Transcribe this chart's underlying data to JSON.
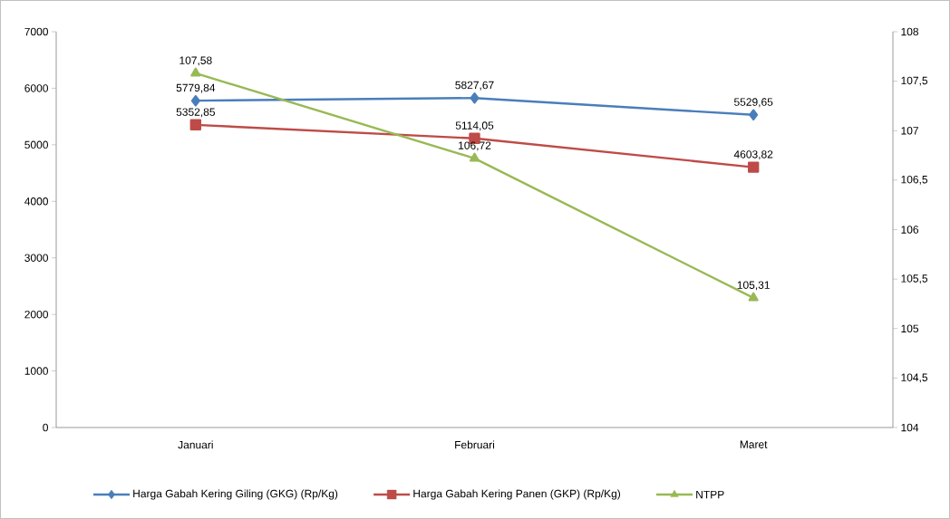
{
  "chart_data": {
    "type": "line",
    "categories": [
      "Januari",
      "Februari",
      "Maret"
    ],
    "series": [
      {
        "name": "Harga Gabah Kering Giling (GKG) (Rp/Kg)",
        "color": "#4a7ebb",
        "marker": "diamond",
        "values": [
          5779.84,
          5827.67,
          5529.65
        ],
        "value_labels": [
          "5779,84",
          "5827,67",
          "5529,65"
        ]
      },
      {
        "name": "Harga Gabah Kering Panen (GKP) (Rp/Kg)",
        "color": "#be4b48",
        "marker": "square",
        "values": [
          5352.85,
          5114.05,
          4603.82
        ],
        "value_labels": [
          "5352,85",
          "5114,05",
          "4603,82"
        ]
      },
      {
        "name": "NTPP",
        "color": "#98b954",
        "marker": "triangle",
        "axis": "y2",
        "values": [
          107.58,
          106.72,
          105.31
        ],
        "value_labels": [
          "107,58",
          "106,72",
          "105,31"
        ]
      }
    ],
    "ylim": [
      0,
      7000
    ],
    "yticks": [
      0,
      1000,
      2000,
      3000,
      4000,
      5000,
      6000,
      7000
    ],
    "y2lim": [
      104,
      108
    ],
    "y2ticks": [
      104,
      {
        "value": 104.5,
        "label": "104,5"
      },
      105,
      {
        "value": 105.5,
        "label": "105,5"
      },
      106,
      {
        "value": 106.5,
        "label": "106,5"
      },
      107,
      {
        "value": 107.5,
        "label": "107,5"
      },
      108
    ],
    "legend": "bottom",
    "line_style": "solid"
  }
}
